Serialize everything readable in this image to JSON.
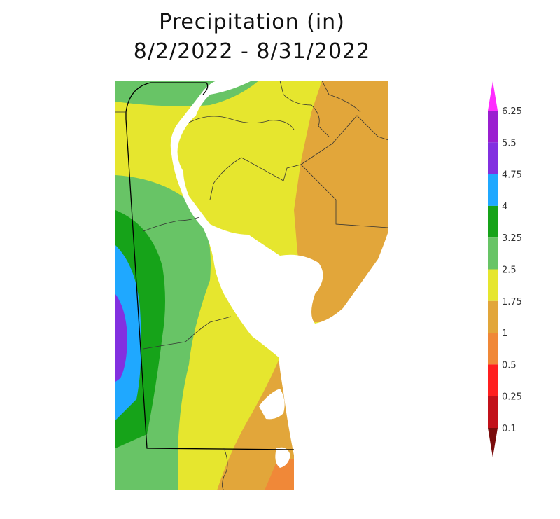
{
  "title": "Precipitation (in)",
  "subtitle": "8/2/2022 - 8/31/2022",
  "legend": {
    "labels": [
      "6.25",
      "5.5",
      "4.75",
      "4",
      "3.25",
      "2.5",
      "1.75",
      "1",
      "0.5",
      "0.25",
      "0.1"
    ],
    "colors": [
      "#ff2cff",
      "#9a1fd0",
      "#8230e0",
      "#1fa8ff",
      "#16a319",
      "#68c466",
      "#e6e62e",
      "#e2a63a",
      "#f08838",
      "#ff1f1f",
      "#c2111a",
      "#7a0c0c"
    ]
  },
  "colors": {
    "water": "#ffffff",
    "boundary": "#000000",
    "county_line": "#333333"
  }
}
